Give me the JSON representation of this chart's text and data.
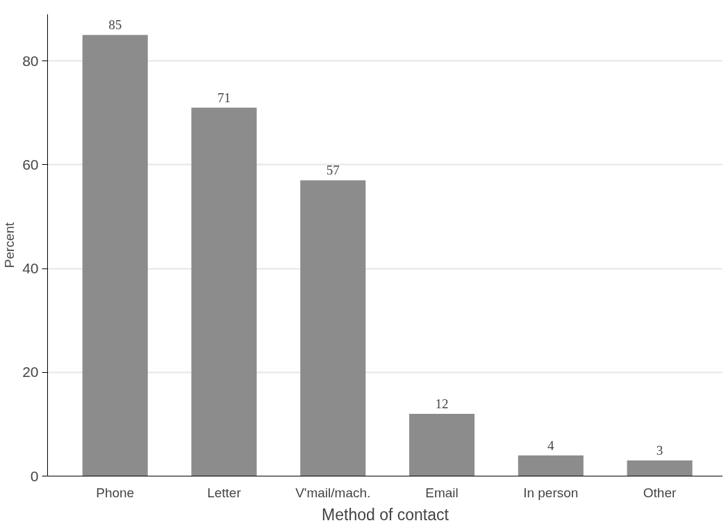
{
  "chart_data": {
    "type": "bar",
    "xlabel": "Method of contact",
    "ylabel": "Percent",
    "categories": [
      "Phone",
      "Letter",
      "V'mail/mach.",
      "Email",
      "In person",
      "Other"
    ],
    "values": [
      85,
      71,
      57,
      12,
      4,
      3
    ],
    "color": "#8c8c8c",
    "ylim": [
      0,
      89
    ],
    "yticks": [
      0,
      20,
      40,
      60,
      80
    ],
    "grid": "y",
    "data_labels": true
  }
}
